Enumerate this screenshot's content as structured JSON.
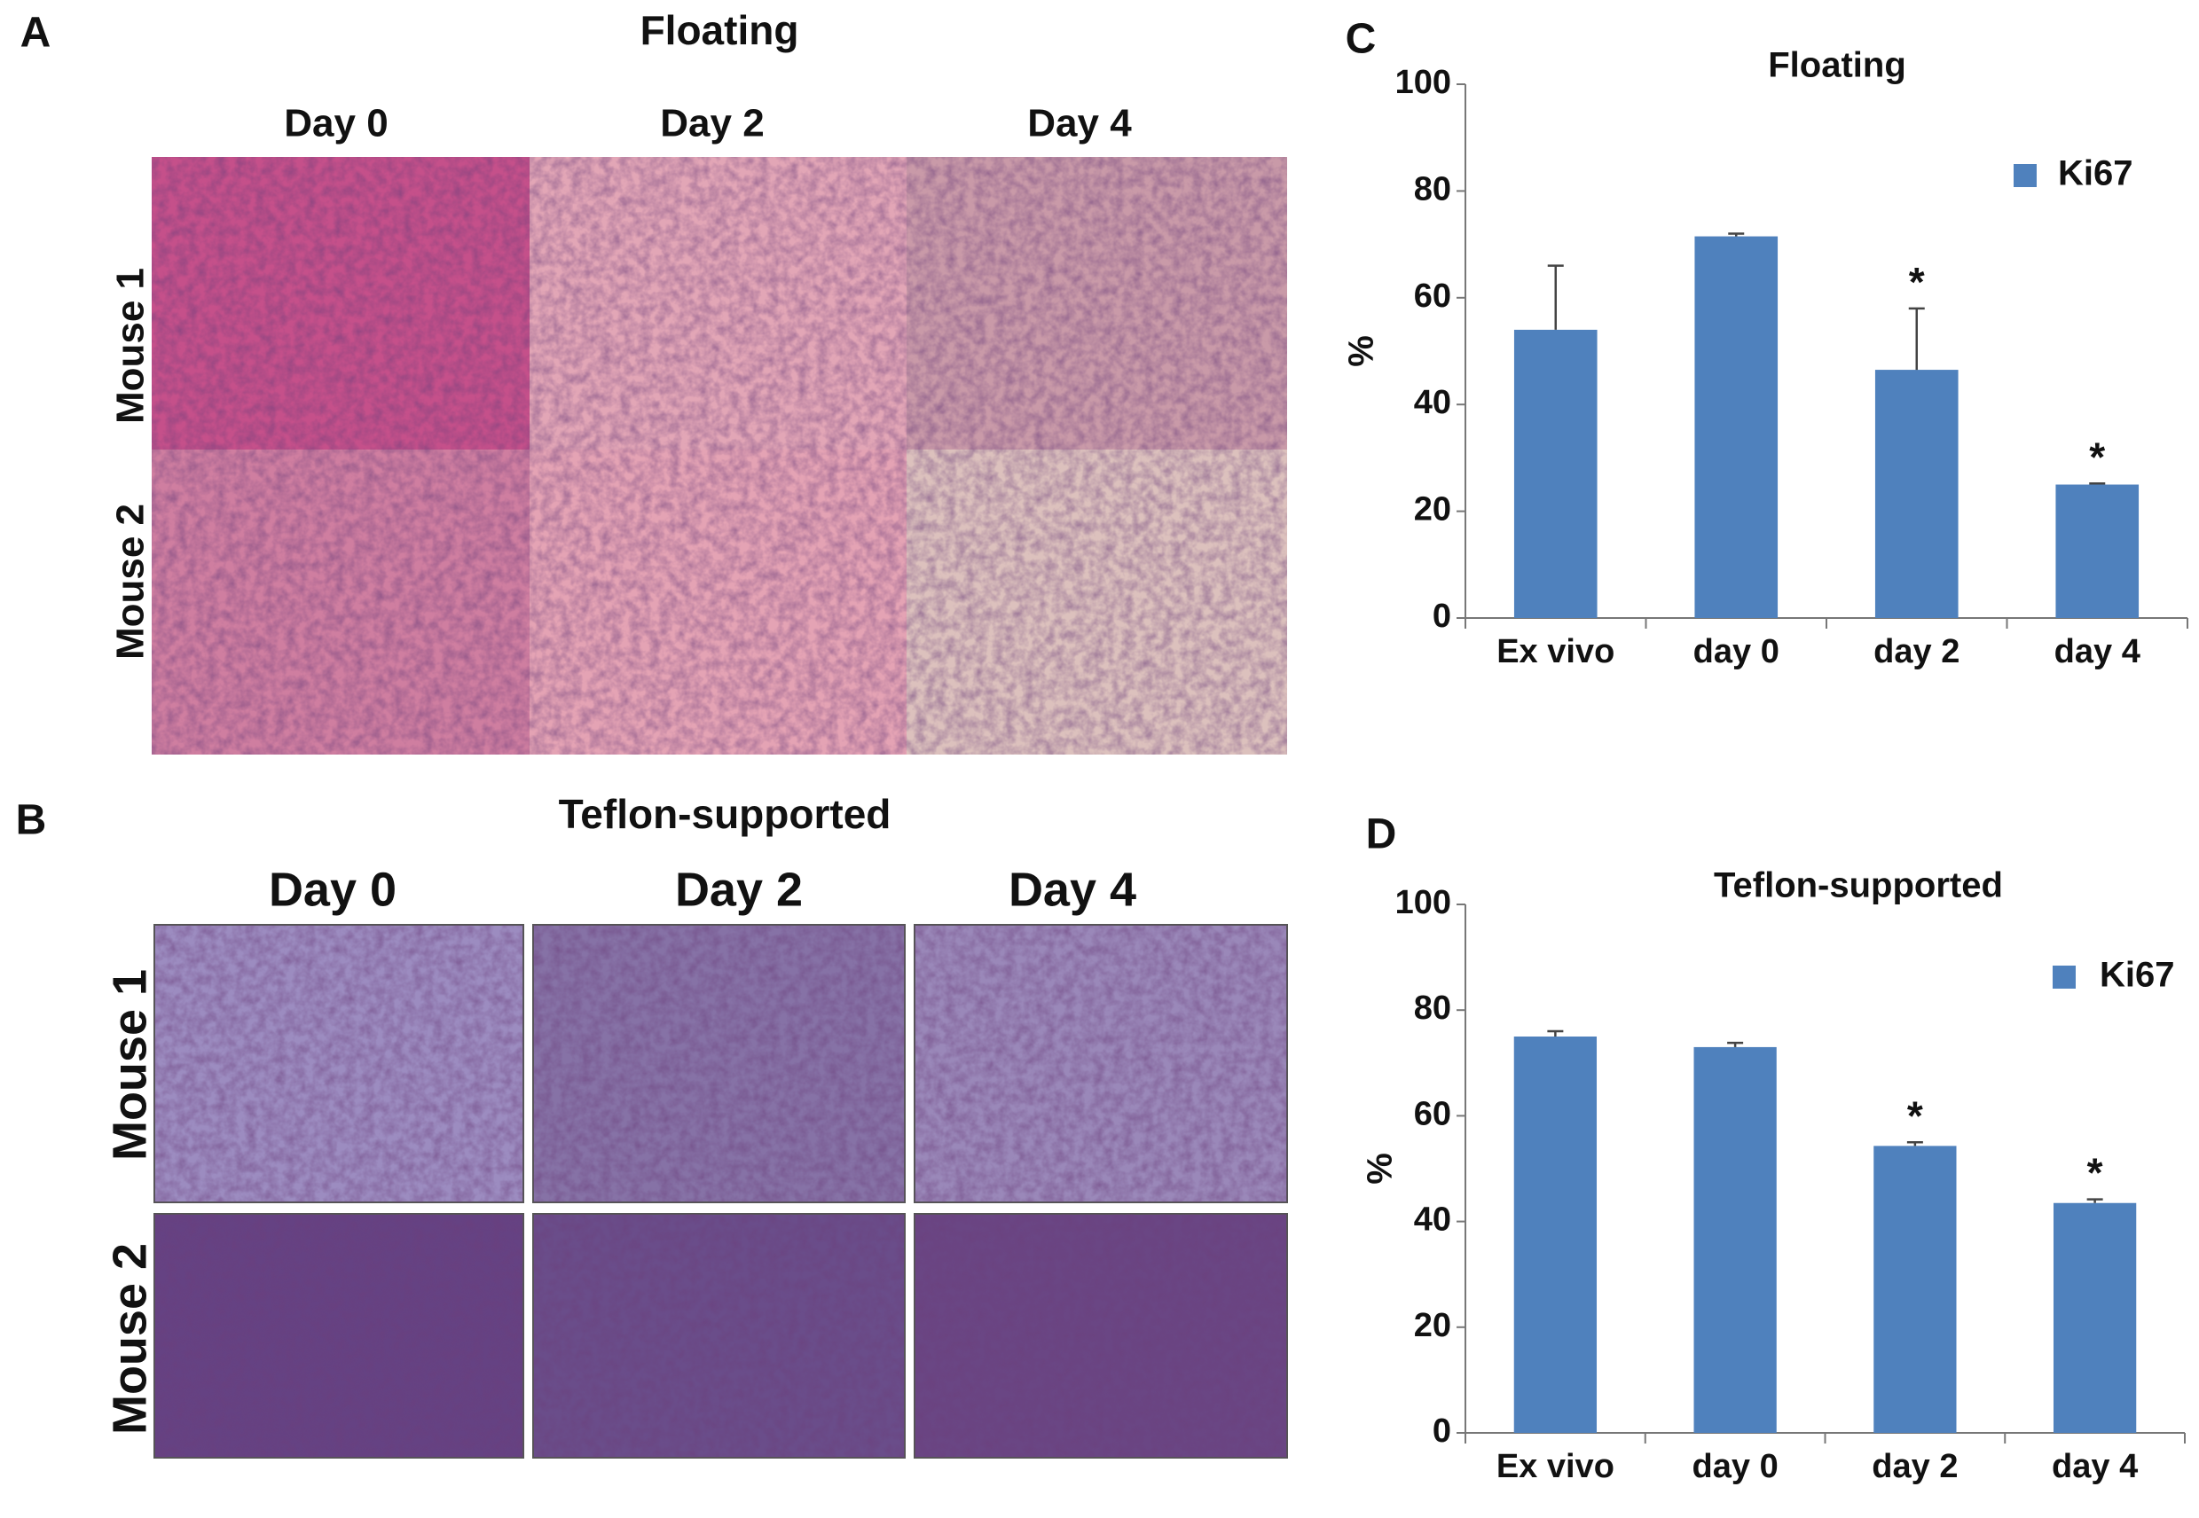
{
  "panels": [
    {
      "label": "A",
      "title": "Floating",
      "columns": [
        "Day 0",
        "Day 2",
        "Day 4"
      ],
      "rows": [
        "Mouse 1",
        "Mouse 2"
      ]
    },
    {
      "label": "B",
      "title": "Teflon-supported",
      "columns": [
        "Day 0",
        "Day 2",
        "Day 4"
      ],
      "rows": [
        "Mouse 1",
        "Mouse 2"
      ]
    }
  ],
  "chart_data": [
    {
      "type": "bar",
      "label": "C",
      "title": "Floating",
      "ylabel": "%",
      "categories": [
        "Ex vivo",
        "day 0",
        "day 2",
        "day 4"
      ],
      "series": [
        {
          "name": "Ki67",
          "color": "#4f81bd",
          "values": [
            54,
            71.5,
            46.5,
            25
          ],
          "errors": [
            12,
            0.5,
            11.5,
            0.2
          ]
        }
      ],
      "significance": [
        null,
        null,
        "*",
        "*"
      ],
      "ylim": [
        0,
        100
      ],
      "yticks": [
        0,
        20,
        40,
        60,
        80,
        100
      ],
      "legend": "upper right"
    },
    {
      "type": "bar",
      "label": "D",
      "title": "Teflon-supported",
      "ylabel": "%",
      "categories": [
        "Ex vivo",
        "day 0",
        "day 2",
        "day 4"
      ],
      "series": [
        {
          "name": "Ki67",
          "color": "#4f81bd",
          "values": [
            75,
            73,
            54.3,
            43.5
          ],
          "errors": [
            1,
            0.8,
            0.7,
            0.7
          ]
        }
      ],
      "significance": [
        null,
        null,
        "*",
        "*"
      ],
      "ylim": [
        0,
        100
      ],
      "yticks": [
        0,
        20,
        40,
        60,
        80,
        100
      ],
      "legend": "upper right"
    }
  ]
}
